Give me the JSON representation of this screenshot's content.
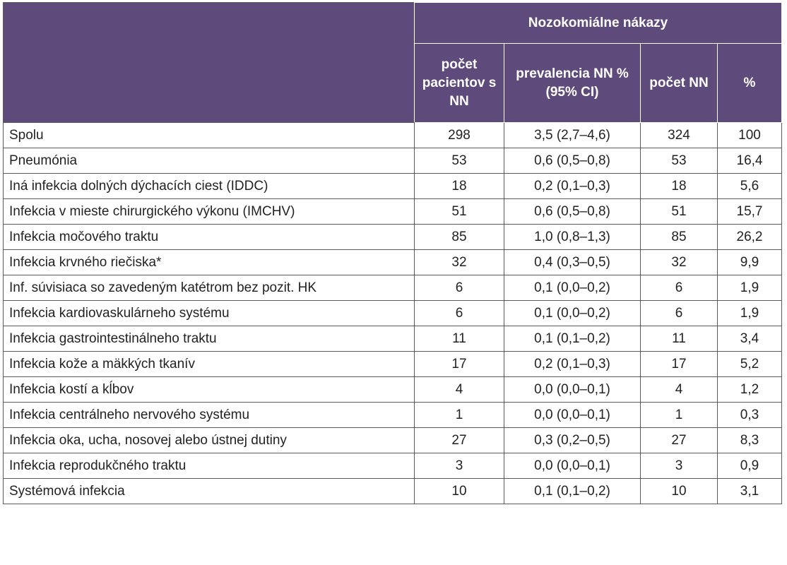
{
  "header": {
    "group_title": "Nozokomiálne nákazy",
    "columns": [
      "počet pacientov s NN",
      "prevalencia NN % (95% CI)",
      "počet NN",
      "%"
    ]
  },
  "rows": [
    {
      "label": "Spolu",
      "patients": "298",
      "prevalence": "3,5 (2,7–4,6)",
      "count": "324",
      "pct": "100"
    },
    {
      "label": "Pneumónia",
      "patients": "53",
      "prevalence": "0,6 (0,5–0,8)",
      "count": "53",
      "pct": "16,4"
    },
    {
      "label": "Iná infekcia dolných dýchacích ciest (IDDC)",
      "patients": "18",
      "prevalence": "0,2 (0,1–0,3)",
      "count": "18",
      "pct": "5,6"
    },
    {
      "label": "Infekcia v mieste chirurgického výkonu (IMCHV)",
      "patients": "51",
      "prevalence": "0,6 (0,5–0,8)",
      "count": "51",
      "pct": "15,7"
    },
    {
      "label": "Infekcia močového traktu",
      "patients": "85",
      "prevalence": "1,0 (0,8–1,3)",
      "count": "85",
      "pct": "26,2"
    },
    {
      "label": "Infekcia krvného riečiska*",
      "patients": "32",
      "prevalence": "0,4 (0,3–0,5)",
      "count": "32",
      "pct": "9,9"
    },
    {
      "label": "Inf. súvisiaca so zavedeným katétrom bez pozit. HK",
      "patients": "6",
      "prevalence": "0,1 (0,0–0,2)",
      "count": "6",
      "pct": "1,9"
    },
    {
      "label": "Infekcia kardiovaskulárneho systému",
      "patients": "6",
      "prevalence": "0,1 (0,0–0,2)",
      "count": "6",
      "pct": "1,9"
    },
    {
      "label": "Infekcia gastrointestinálneho traktu",
      "patients": "11",
      "prevalence": "0,1 (0,1–0,2)",
      "count": "11",
      "pct": "3,4"
    },
    {
      "label": "Infekcia kože a mäkkých tkanív",
      "patients": "17",
      "prevalence": "0,2 (0,1–0,3)",
      "count": "17",
      "pct": "5,2"
    },
    {
      "label": "Infekcia kostí a kĺbov",
      "patients": "4",
      "prevalence": "0,0 (0,0–0,1)",
      "count": "4",
      "pct": "1,2"
    },
    {
      "label": "Infekcia centrálneho nervového systému",
      "patients": "1",
      "prevalence": "0,0 (0,0–0,1)",
      "count": "1",
      "pct": "0,3"
    },
    {
      "label": "Infekcia oka, ucha, nosovej alebo ústnej dutiny",
      "patients": "27",
      "prevalence": "0,3 (0,2–0,5)",
      "count": "27",
      "pct": "8,3"
    },
    {
      "label": "Infekcia reprodukčného traktu",
      "patients": "3",
      "prevalence": "0,0 (0,0–0,1)",
      "count": "3",
      "pct": "0,9"
    },
    {
      "label": "Systémová infekcia",
      "patients": "10",
      "prevalence": "0,1 (0,1–0,2)",
      "count": "10",
      "pct": "3,1"
    }
  ]
}
